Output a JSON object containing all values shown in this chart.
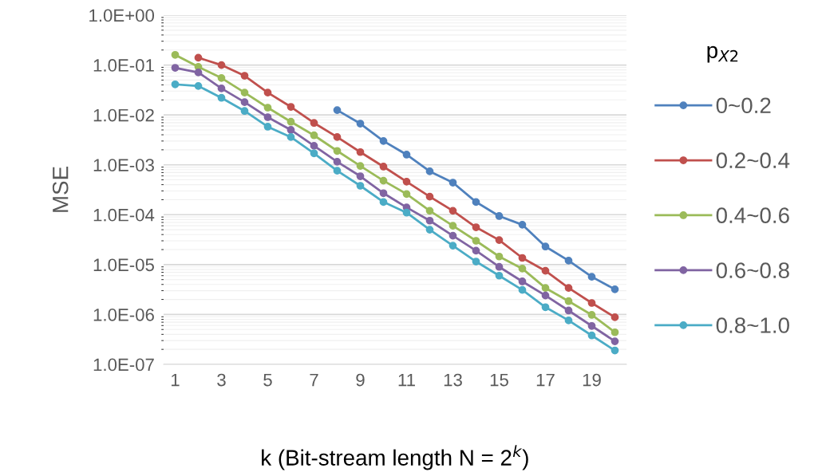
{
  "chart_data": {
    "type": "line",
    "xlabel": "k (Bit-stream length N = 2$^{k}$)",
    "ylabel": "MSE",
    "legend_title": "p$_{X2}$",
    "categories": [
      "1",
      null,
      "3",
      null,
      "5",
      null,
      "7",
      null,
      "9",
      null,
      "11",
      null,
      "13",
      null,
      "15",
      null,
      "17",
      null,
      "19",
      null
    ],
    "series": [
      {
        "name": "0~0.2",
        "color": "#4f81bd",
        "values": [
          null,
          null,
          null,
          null,
          null,
          null,
          null,
          0.0125,
          0.0067,
          0.003,
          0.0016,
          0.00074,
          0.00044,
          0.00018,
          9.4e-05,
          6.3e-05,
          2.3e-05,
          1.2e-05,
          5.7e-06,
          3.2e-06
        ]
      },
      {
        "name": "0.2~0.4",
        "color": "#c0504d",
        "values": [
          null,
          0.14,
          0.1,
          0.061,
          0.028,
          0.0145,
          0.0069,
          0.0036,
          0.0018,
          0.00092,
          0.00046,
          0.00023,
          0.00012,
          5.6e-05,
          3.1e-05,
          1.36e-05,
          7.5e-06,
          3.4e-06,
          1.7e-06,
          8.8e-07
        ]
      },
      {
        "name": "0.4~0.6",
        "color": "#9bbb59",
        "values": [
          0.16,
          0.092,
          0.055,
          0.028,
          0.014,
          0.0073,
          0.0039,
          0.0019,
          0.00095,
          0.00048,
          0.00026,
          0.00012,
          6e-05,
          3e-05,
          1.45e-05,
          8.3e-06,
          3.4e-06,
          1.85e-06,
          9.8e-07,
          4.4e-07
        ]
      },
      {
        "name": "0.6~0.8",
        "color": "#8064a2",
        "values": [
          0.088,
          0.071,
          0.034,
          0.018,
          0.009,
          0.005,
          0.0024,
          0.00115,
          0.00059,
          0.00027,
          0.00014,
          7.6e-05,
          3.8e-05,
          1.9e-05,
          9e-06,
          4.6e-06,
          2.4e-06,
          1.2e-06,
          5.9e-07,
          2.9e-07
        ]
      },
      {
        "name": "0.8~1.0",
        "color": "#4bacc6",
        "values": [
          0.041,
          0.038,
          0.022,
          0.012,
          0.0058,
          0.0036,
          0.0017,
          0.00076,
          0.00038,
          0.00018,
          0.00011,
          5e-05,
          2.4e-05,
          1.15e-05,
          6e-06,
          3.1e-06,
          1.4e-06,
          7.6e-07,
          3.8e-07,
          1.9e-07
        ]
      }
    ],
    "log": "y",
    "ylim": [
      1e-07,
      1
    ],
    "yticks": [
      {
        "value": 1e-07,
        "label": "1.0E-07"
      },
      {
        "value": 1e-06,
        "label": "1.0E-06"
      },
      {
        "value": 1e-05,
        "label": "1.0E-05"
      },
      {
        "value": 0.0001,
        "label": "1.0E-04"
      },
      {
        "value": 0.001,
        "label": "1.0E-03"
      },
      {
        "value": 0.01,
        "label": "1.0E-02"
      },
      {
        "value": 0.1,
        "label": "1.0E-01"
      },
      {
        "value": 1,
        "label": "1.0E+00"
      }
    ],
    "grid": "y",
    "legend": "right",
    "marker": "circle",
    "line_style": "solid"
  }
}
